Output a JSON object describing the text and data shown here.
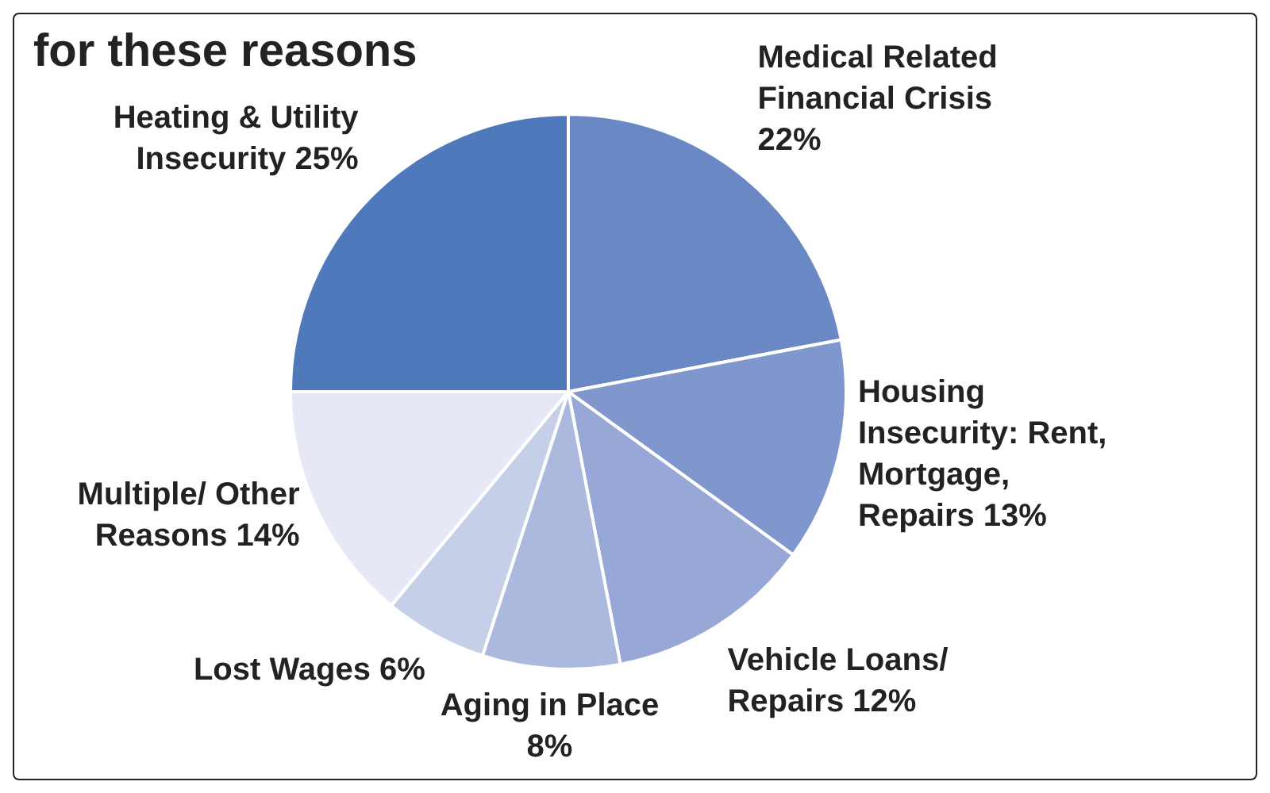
{
  "chart_data": {
    "type": "pie",
    "title": "for these reasons",
    "categories": [
      "Medical Related Financial Crisis",
      "Housing Insecurity: Rent, Mortgage, Repairs",
      "Vehicle Loans/ Repairs",
      "Aging in Place",
      "Lost Wages",
      "Multiple/ Other Reasons",
      "Heating & Utility Insecurity"
    ],
    "values": [
      22,
      13,
      12,
      8,
      6,
      14,
      25
    ],
    "colors": [
      "#6a88c4",
      "#7f97cc",
      "#97a8d6",
      "#abb9de",
      "#c5cfe7",
      "#e6e8f5",
      "#4f79ba"
    ],
    "value_labels": [
      "22%",
      "13%",
      "12%",
      "8%",
      "6%",
      "14%",
      "25%"
    ],
    "legend": false
  }
}
